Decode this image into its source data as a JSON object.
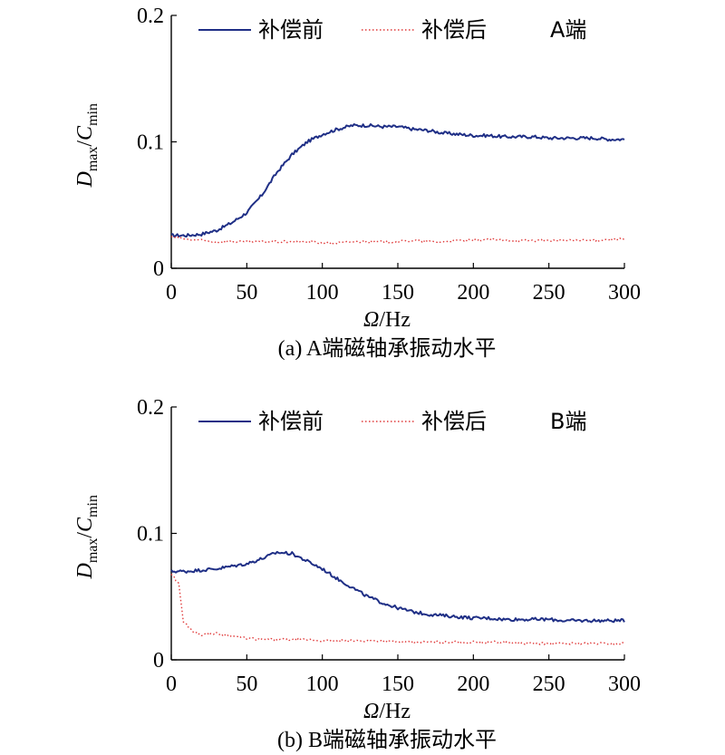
{
  "chart_data": [
    {
      "type": "line",
      "caption": "(a) A端磁轴承振动水平",
      "annotation": "A端",
      "xlabel_symbol": "Ω",
      "xlabel_unit": "/Hz",
      "ylabel_main": "D",
      "ylabel_sub1": "max",
      "ylabel_sep": "/",
      "ylabel_main2": "C",
      "ylabel_sub2": "min",
      "xlim": [
        0,
        300
      ],
      "ylim": [
        0,
        0.2
      ],
      "x_ticks": [
        0,
        50,
        100,
        150,
        200,
        250,
        300
      ],
      "y_ticks": [
        0,
        0.1,
        0.2
      ],
      "y_tick_labels": [
        "0",
        "0.1",
        "0.2"
      ],
      "legend_position": "top",
      "series": [
        {
          "name": "补偿前",
          "style": "solid",
          "color": "#1f2f86",
          "x": [
            0,
            10,
            20,
            30,
            40,
            50,
            60,
            70,
            80,
            90,
            100,
            110,
            120,
            130,
            140,
            150,
            160,
            170,
            180,
            190,
            200,
            210,
            220,
            230,
            240,
            250,
            260,
            270,
            280,
            290,
            300
          ],
          "y": [
            0.026,
            0.026,
            0.027,
            0.03,
            0.036,
            0.044,
            0.058,
            0.076,
            0.09,
            0.1,
            0.106,
            0.11,
            0.113,
            0.113,
            0.112,
            0.112,
            0.11,
            0.109,
            0.107,
            0.106,
            0.105,
            0.105,
            0.104,
            0.104,
            0.104,
            0.103,
            0.103,
            0.103,
            0.103,
            0.102,
            0.102
          ]
        },
        {
          "name": "补偿后",
          "style": "dotted",
          "color": "#e03a3a",
          "x": [
            0,
            10,
            20,
            30,
            40,
            50,
            60,
            70,
            80,
            90,
            100,
            110,
            120,
            130,
            140,
            150,
            160,
            170,
            180,
            190,
            200,
            210,
            220,
            230,
            240,
            250,
            260,
            270,
            280,
            290,
            300
          ],
          "y": [
            0.025,
            0.023,
            0.022,
            0.021,
            0.021,
            0.021,
            0.021,
            0.021,
            0.021,
            0.021,
            0.02,
            0.02,
            0.021,
            0.021,
            0.021,
            0.021,
            0.022,
            0.021,
            0.021,
            0.022,
            0.022,
            0.023,
            0.022,
            0.022,
            0.022,
            0.022,
            0.022,
            0.022,
            0.022,
            0.023,
            0.023
          ]
        }
      ]
    },
    {
      "type": "line",
      "caption": "(b) B端磁轴承振动水平",
      "annotation": "B端",
      "xlabel_symbol": "Ω",
      "xlabel_unit": "/Hz",
      "ylabel_main": "D",
      "ylabel_sub1": "max",
      "ylabel_sep": "/",
      "ylabel_main2": "C",
      "ylabel_sub2": "min",
      "xlim": [
        0,
        300
      ],
      "ylim": [
        0,
        0.2
      ],
      "x_ticks": [
        0,
        50,
        100,
        150,
        200,
        250,
        300
      ],
      "y_ticks": [
        0,
        0.1,
        0.2
      ],
      "y_tick_labels": [
        "0",
        "0.1",
        "0.2"
      ],
      "legend_position": "top",
      "series": [
        {
          "name": "补偿前",
          "style": "solid",
          "color": "#1f2f86",
          "x": [
            0,
            10,
            20,
            30,
            40,
            50,
            60,
            70,
            80,
            90,
            100,
            110,
            120,
            130,
            140,
            150,
            160,
            170,
            180,
            190,
            200,
            210,
            220,
            230,
            240,
            250,
            260,
            270,
            280,
            290,
            300
          ],
          "y": [
            0.07,
            0.07,
            0.071,
            0.072,
            0.074,
            0.076,
            0.08,
            0.085,
            0.084,
            0.078,
            0.072,
            0.064,
            0.057,
            0.05,
            0.045,
            0.041,
            0.038,
            0.036,
            0.035,
            0.034,
            0.033,
            0.033,
            0.032,
            0.032,
            0.032,
            0.032,
            0.031,
            0.031,
            0.031,
            0.031,
            0.031
          ]
        },
        {
          "name": "补偿后",
          "style": "dotted",
          "color": "#e03a3a",
          "x": [
            0,
            5,
            8,
            10,
            15,
            20,
            30,
            40,
            50,
            60,
            70,
            80,
            90,
            100,
            110,
            120,
            130,
            140,
            150,
            160,
            170,
            180,
            190,
            200,
            210,
            220,
            230,
            240,
            250,
            260,
            270,
            280,
            290,
            300
          ],
          "y": [
            0.068,
            0.06,
            0.03,
            0.028,
            0.022,
            0.02,
            0.021,
            0.019,
            0.017,
            0.016,
            0.016,
            0.016,
            0.016,
            0.015,
            0.015,
            0.015,
            0.015,
            0.015,
            0.014,
            0.014,
            0.014,
            0.014,
            0.014,
            0.014,
            0.014,
            0.014,
            0.013,
            0.013,
            0.013,
            0.013,
            0.013,
            0.013,
            0.013,
            0.013
          ]
        }
      ]
    }
  ]
}
